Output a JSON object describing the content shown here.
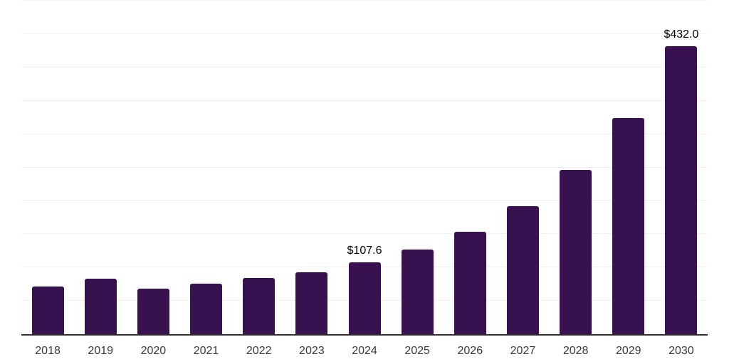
{
  "chart_data": {
    "type": "bar",
    "title": "",
    "xlabel": "",
    "ylabel": "",
    "categories": [
      "2018",
      "2019",
      "2020",
      "2021",
      "2022",
      "2023",
      "2024",
      "2025",
      "2026",
      "2027",
      "2028",
      "2029",
      "2030"
    ],
    "values": [
      71.7,
      82.8,
      68.5,
      75.7,
      84.1,
      93.0,
      107.6,
      126.6,
      154.0,
      192.1,
      246.5,
      323.6,
      432.0
    ],
    "data_labels": [
      {
        "category": "2024",
        "text": "$107.6"
      },
      {
        "category": "2030",
        "text": "$432.0"
      }
    ],
    "ylim": [
      0,
      500
    ],
    "gridline_step": 50,
    "grid": "horizontal",
    "y_axis_labels_visible": false,
    "legend": "none",
    "colors": {
      "bar": "#381150",
      "axis_line": "#2e2e2e",
      "gridline": "#f1f1f3",
      "x_tick_text": "#3a3a3a",
      "data_label_text": "#000000",
      "background": "#ffffff"
    }
  }
}
